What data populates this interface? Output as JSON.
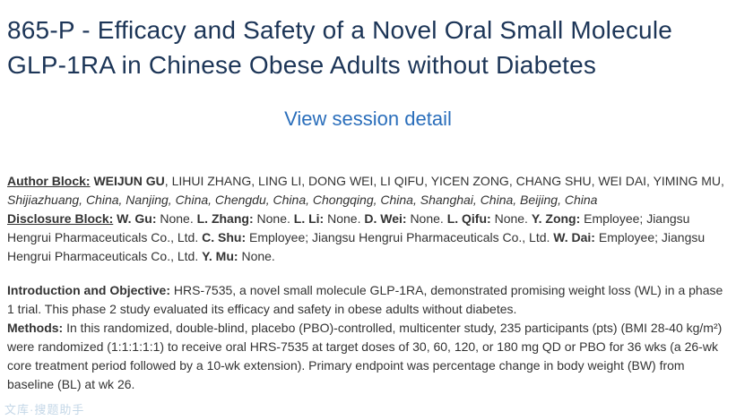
{
  "header": {
    "title": "865-P - Efficacy and Safety of a Novel Oral Small Molecule GLP-1RA in Chinese Obese Adults without Diabetes",
    "session_link_label": "View session detail",
    "title_color": "#1c3557",
    "link_color": "#2a6ebb"
  },
  "author_block": {
    "label": "Author Block:",
    "first_author": "WEIJUN GU",
    "coauthors": ", LIHUI ZHANG, LING LI, DONG WEI, LI QIFU, YICEN ZONG, CHANG SHU, WEI DAI, YIMING MU,",
    "affiliations": "Shijiazhuang, China, Nanjing, China, Chengdu, China, Chongqing, China, Shanghai, China, Beijing, China"
  },
  "disclosure_block": {
    "label": "Disclosure Block:",
    "entries": [
      {
        "name": "W. Gu:",
        "disclosure": "None."
      },
      {
        "name": "L. Zhang:",
        "disclosure": "None."
      },
      {
        "name": "L. Li:",
        "disclosure": "None."
      },
      {
        "name": "D. Wei:",
        "disclosure": "None."
      },
      {
        "name": "L. Qifu:",
        "disclosure": "None."
      },
      {
        "name": "Y. Zong:",
        "disclosure": "Employee; Jiangsu Hengrui Pharmaceuticals Co., Ltd."
      },
      {
        "name": "C. Shu:",
        "disclosure": "Employee; Jiangsu Hengrui Pharmaceuticals Co., Ltd."
      },
      {
        "name": "W. Dai:",
        "disclosure": "Employee; Jiangsu Hengrui Pharmaceuticals Co., Ltd."
      },
      {
        "name": "Y. Mu:",
        "disclosure": "None."
      }
    ]
  },
  "sections": [
    {
      "label": "Introduction and Objective:",
      "text": "HRS-7535, a novel small molecule GLP-1RA, demonstrated promising weight loss (WL) in a phase 1 trial. This phase 2 study evaluated its efficacy and safety in obese adults without diabetes."
    },
    {
      "label": "Methods:",
      "text": "In this randomized, double-blind, placebo (PBO)-controlled, multicenter study, 235 participants (pts) (BMI 28-40 kg/m²) were randomized (1:1:1:1:1) to receive oral HRS-7535 at target doses of 30, 60, 120, or 180 mg QD or PBO for 36 wks (a 26-wk core treatment period followed by a 10-wk extension). Primary endpoint was percentage change in body weight (BW) from baseline (BL) at wk 26."
    }
  ],
  "watermark": {
    "text": "文库·搜题助手"
  }
}
